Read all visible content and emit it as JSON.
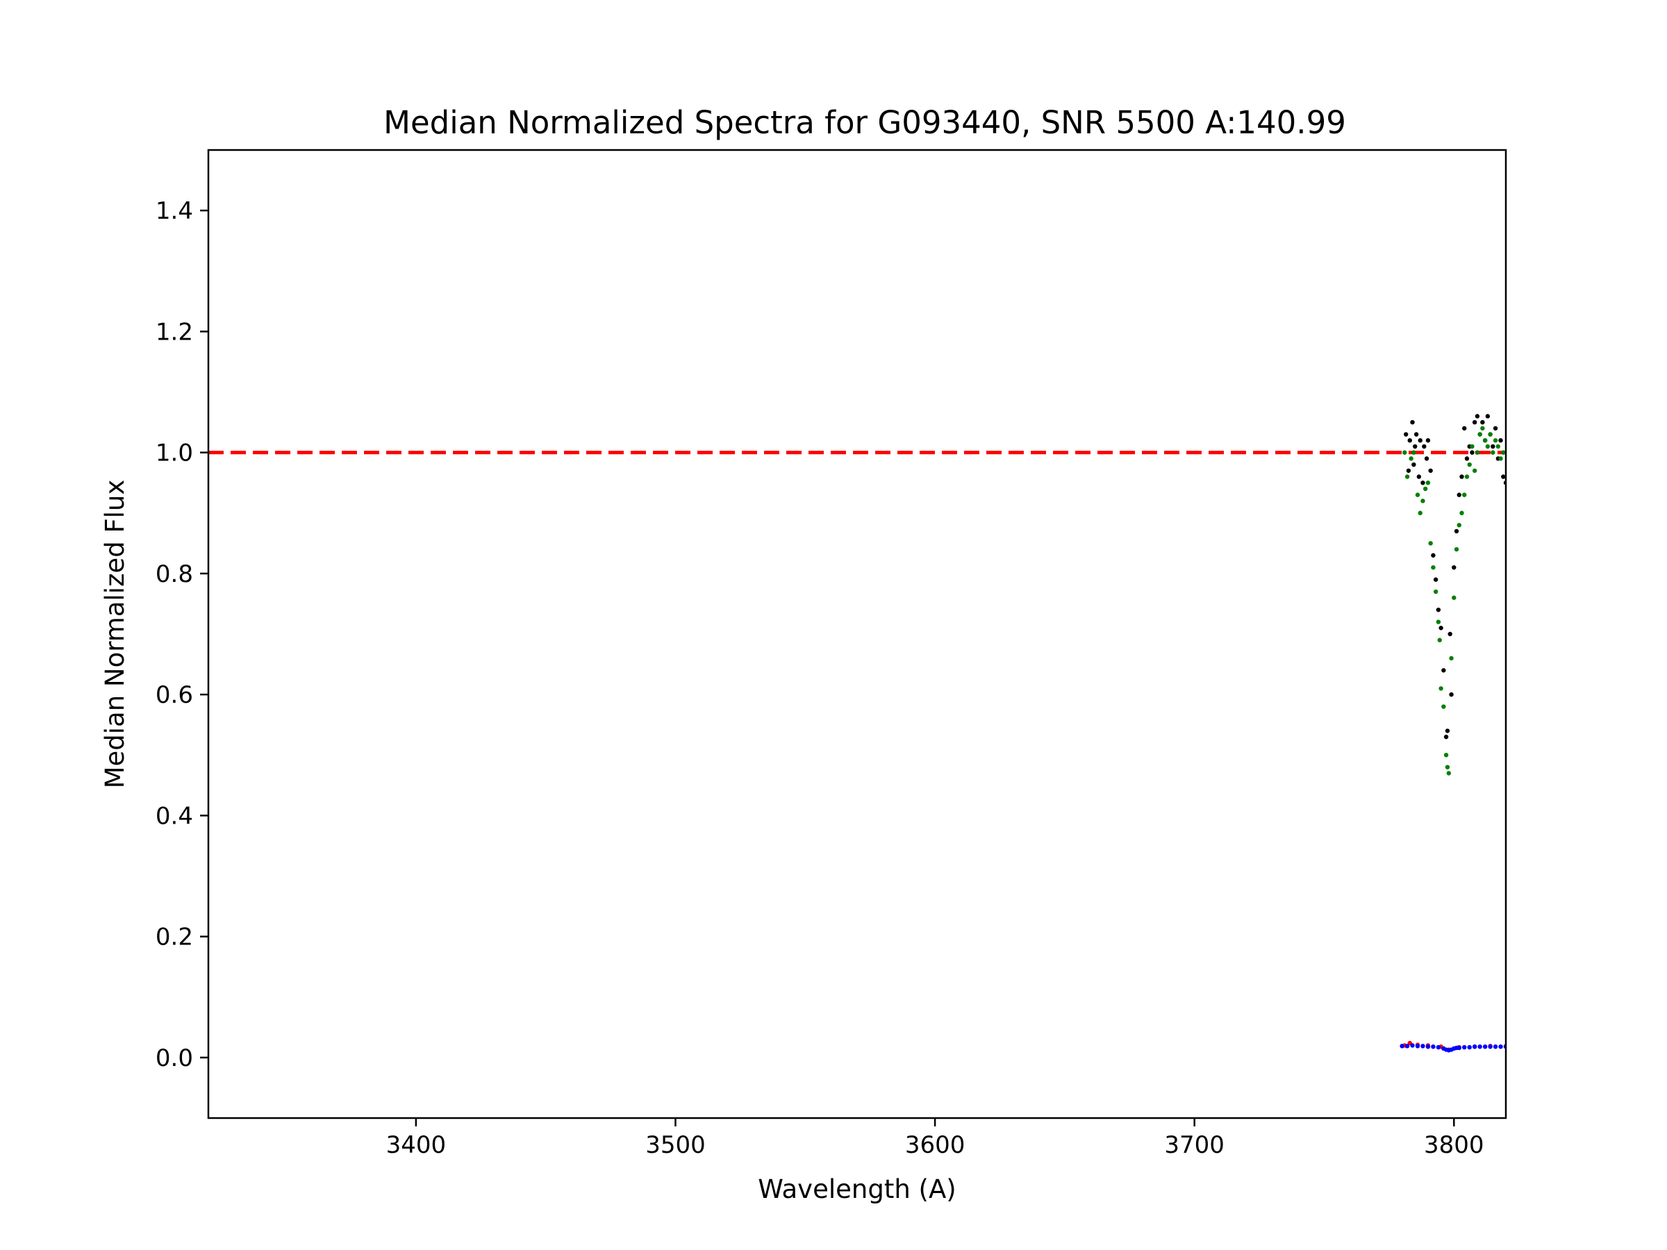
{
  "chart_data": {
    "type": "scatter",
    "title": "Median Normalized Spectra for G093440, SNR 5500 A:140.99",
    "xlabel": "Wavelength (A)",
    "ylabel": "Median Normalized Flux",
    "xlim": [
      3320,
      3820
    ],
    "ylim": [
      -0.1,
      1.5
    ],
    "xticks": [
      3400,
      3500,
      3600,
      3700,
      3800
    ],
    "xtick_labels": [
      "3400",
      "3500",
      "3600",
      "3700",
      "3800"
    ],
    "yticks": [
      0.0,
      0.2,
      0.4,
      0.6,
      0.8,
      1.0,
      1.2,
      1.4
    ],
    "ytick_labels": [
      "0.0",
      "0.2",
      "0.4",
      "0.6",
      "0.8",
      "1.0",
      "1.2",
      "1.4"
    ],
    "grid": false,
    "reference_line": {
      "y": 1.0,
      "style": "dashed",
      "color": "#ff0000"
    },
    "series": [
      {
        "color": "#000000",
        "points": [
          [
            3781.5,
            1.03
          ],
          [
            3782.5,
            0.97
          ],
          [
            3783.0,
            1.02
          ],
          [
            3784.0,
            1.05
          ],
          [
            3784.5,
            0.98
          ],
          [
            3785.0,
            1.01
          ],
          [
            3785.5,
            1.03
          ],
          [
            3786.5,
            0.96
          ],
          [
            3787.0,
            1.02
          ],
          [
            3788.0,
            0.95
          ],
          [
            3788.5,
            1.01
          ],
          [
            3789.5,
            0.99
          ],
          [
            3790.0,
            1.02
          ],
          [
            3791.0,
            0.97
          ],
          [
            3792.0,
            0.83
          ],
          [
            3793.0,
            0.79
          ],
          [
            3794.0,
            0.74
          ],
          [
            3795.0,
            0.71
          ],
          [
            3796.0,
            0.64
          ],
          [
            3797.0,
            0.53
          ],
          [
            3797.5,
            0.54
          ],
          [
            3798.5,
            0.7
          ],
          [
            3799.0,
            0.6
          ],
          [
            3800.0,
            0.81
          ],
          [
            3801.0,
            0.87
          ],
          [
            3802.0,
            0.93
          ],
          [
            3803.0,
            0.96
          ],
          [
            3804.0,
            1.04
          ],
          [
            3805.0,
            0.99
          ],
          [
            3806.0,
            1.01
          ],
          [
            3807.0,
            1.0
          ],
          [
            3808.0,
            1.05
          ],
          [
            3809.0,
            1.06
          ],
          [
            3810.0,
            1.03
          ],
          [
            3811.0,
            1.05
          ],
          [
            3812.0,
            1.02
          ],
          [
            3813.0,
            1.06
          ],
          [
            3814.0,
            1.03
          ],
          [
            3815.0,
            1.01
          ],
          [
            3816.0,
            1.04
          ],
          [
            3817.0,
            0.99
          ],
          [
            3818.0,
            1.02
          ],
          [
            3819.0,
            0.96
          ],
          [
            3820.0,
            0.95
          ]
        ]
      },
      {
        "color": "#008000",
        "points": [
          [
            3781.0,
            1.0
          ],
          [
            3782.0,
            0.96
          ],
          [
            3783.5,
            0.99
          ],
          [
            3784.5,
            1.0
          ],
          [
            3786.0,
            0.93
          ],
          [
            3787.0,
            0.9
          ],
          [
            3788.0,
            0.92
          ],
          [
            3789.0,
            0.94
          ],
          [
            3790.0,
            0.95
          ],
          [
            3791.0,
            0.85
          ],
          [
            3792.0,
            0.81
          ],
          [
            3793.0,
            0.77
          ],
          [
            3794.0,
            0.72
          ],
          [
            3794.5,
            0.69
          ],
          [
            3795.0,
            0.61
          ],
          [
            3796.0,
            0.58
          ],
          [
            3797.0,
            0.5
          ],
          [
            3797.5,
            0.48
          ],
          [
            3798.0,
            0.47
          ],
          [
            3799.0,
            0.66
          ],
          [
            3800.0,
            0.76
          ],
          [
            3801.0,
            0.84
          ],
          [
            3802.0,
            0.88
          ],
          [
            3803.0,
            0.9
          ],
          [
            3804.0,
            0.93
          ],
          [
            3805.0,
            0.96
          ],
          [
            3806.0,
            0.98
          ],
          [
            3807.0,
            1.01
          ],
          [
            3808.0,
            0.97
          ],
          [
            3809.0,
            1.0
          ],
          [
            3810.0,
            1.03
          ],
          [
            3811.0,
            1.04
          ],
          [
            3812.0,
            1.02
          ],
          [
            3813.0,
            1.01
          ],
          [
            3814.0,
            1.03
          ],
          [
            3815.0,
            1.0
          ],
          [
            3816.0,
            1.02
          ],
          [
            3817.0,
            1.01
          ],
          [
            3818.0,
            0.99
          ],
          [
            3819.0,
            1.0
          ]
        ]
      },
      {
        "color": "#ff0000",
        "points": [
          [
            3781.0,
            0.02
          ],
          [
            3783.0,
            0.024
          ],
          [
            3786.0,
            0.021
          ],
          [
            3790.0,
            0.02
          ],
          [
            3795.0,
            0.018
          ],
          [
            3798.0,
            0.013
          ],
          [
            3802.0,
            0.017
          ],
          [
            3808.0,
            0.018
          ],
          [
            3814.0,
            0.019
          ],
          [
            3820.0,
            0.019
          ]
        ]
      },
      {
        "color": "#0000ff",
        "points": [
          [
            3780.0,
            0.019
          ],
          [
            3782.0,
            0.019
          ],
          [
            3784.0,
            0.02
          ],
          [
            3786.0,
            0.019
          ],
          [
            3788.0,
            0.019
          ],
          [
            3790.0,
            0.018
          ],
          [
            3792.0,
            0.018
          ],
          [
            3794.0,
            0.017
          ],
          [
            3796.0,
            0.015
          ],
          [
            3797.0,
            0.013
          ],
          [
            3798.0,
            0.012
          ],
          [
            3799.0,
            0.013
          ],
          [
            3800.0,
            0.015
          ],
          [
            3801.0,
            0.016
          ],
          [
            3802.0,
            0.016
          ],
          [
            3804.0,
            0.017
          ],
          [
            3806.0,
            0.017
          ],
          [
            3808.0,
            0.018
          ],
          [
            3810.0,
            0.018
          ],
          [
            3812.0,
            0.018
          ],
          [
            3814.0,
            0.018
          ],
          [
            3816.0,
            0.018
          ],
          [
            3818.0,
            0.018
          ],
          [
            3820.0,
            0.018
          ]
        ]
      }
    ]
  }
}
